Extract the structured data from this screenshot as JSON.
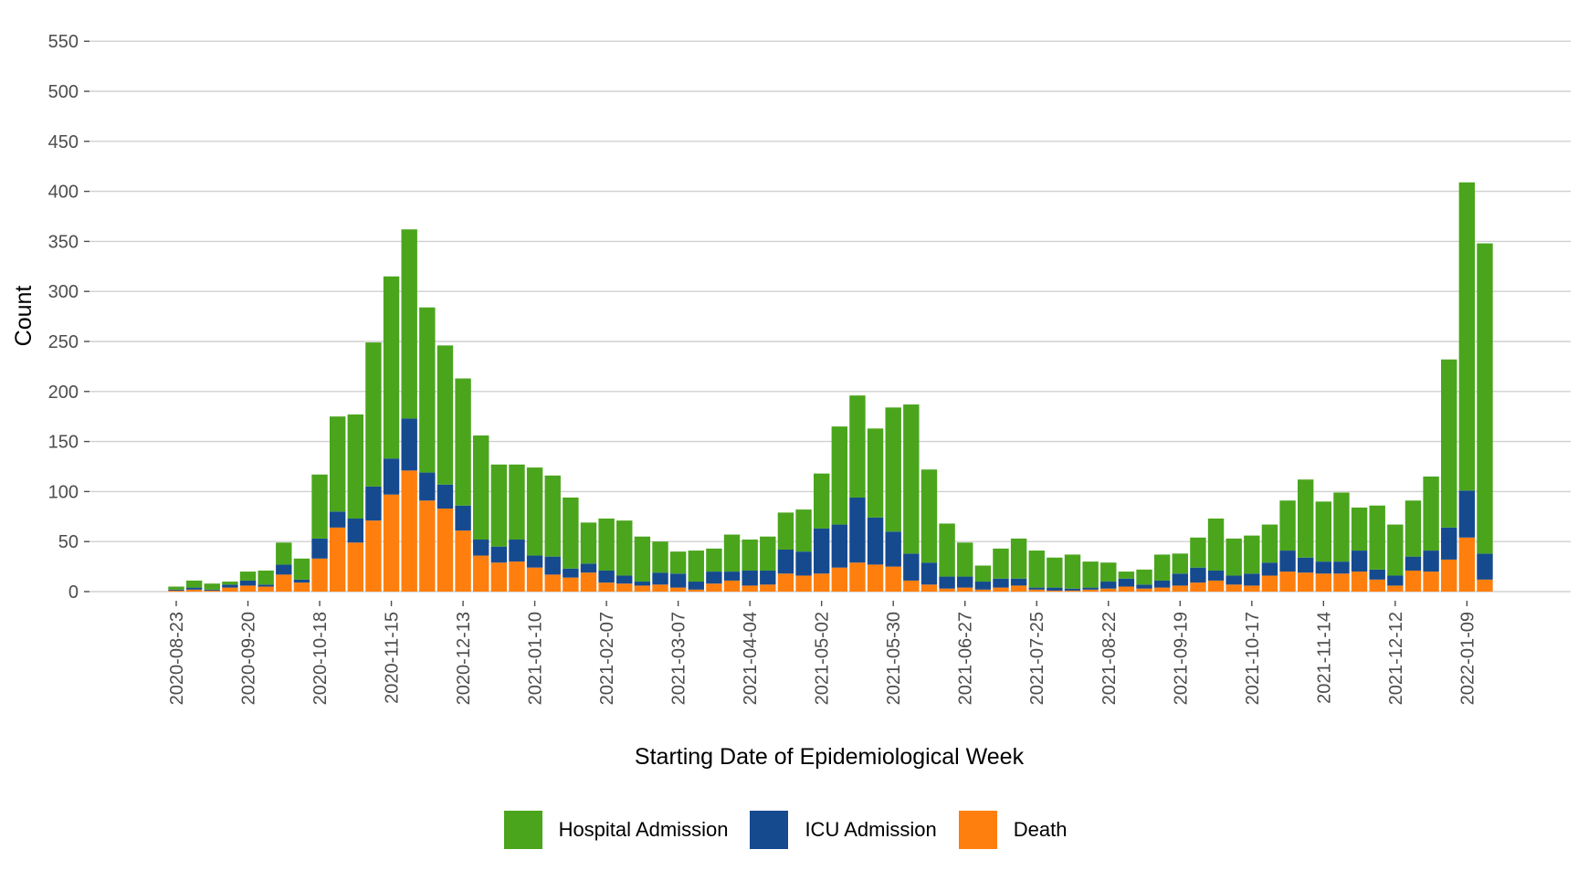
{
  "chart_data": {
    "type": "bar",
    "stacked": true,
    "xlabel": "Starting Date of Epidemiological Week",
    "ylabel": "Count",
    "ylim": [
      0,
      560
    ],
    "y_ticks": [
      0,
      50,
      100,
      150,
      200,
      250,
      300,
      350,
      400,
      450,
      500,
      550
    ],
    "grid": "horizontal",
    "legend_position": "bottom",
    "x_tick_labels": [
      "2020-08-23",
      "2020-09-20",
      "2020-10-18",
      "2020-11-15",
      "2020-12-13",
      "2021-01-10",
      "2021-02-07",
      "2021-03-07",
      "2021-04-04",
      "2021-05-02",
      "2021-05-30",
      "2021-06-27",
      "2021-07-25",
      "2021-08-22",
      "2021-09-19",
      "2021-10-17",
      "2021-11-14",
      "2021-12-12",
      "2022-01-09"
    ],
    "x_tick_every": 4,
    "series": [
      {
        "name": "Death",
        "color": "#FF7F0E",
        "values": [
          1,
          2,
          1,
          4,
          6,
          5,
          17,
          9,
          33,
          64,
          49,
          71,
          97,
          121,
          91,
          83,
          61,
          36,
          29,
          30,
          24,
          17,
          14,
          19,
          9,
          8,
          6,
          7,
          4,
          2,
          8,
          11,
          6,
          7,
          18,
          16,
          18,
          24,
          29,
          27,
          25,
          11,
          7,
          3,
          4,
          2,
          4,
          6,
          2,
          1,
          1,
          2,
          3,
          5,
          3,
          4,
          6,
          9,
          11,
          7,
          6,
          16,
          20,
          19,
          18,
          18,
          20,
          12,
          6,
          21,
          20,
          32,
          54,
          12
        ]
      },
      {
        "name": "ICU Admission",
        "color": "#164A8F",
        "values": [
          1,
          2,
          1,
          3,
          5,
          2,
          10,
          3,
          20,
          16,
          24,
          34,
          36,
          52,
          28,
          24,
          25,
          16,
          16,
          22,
          12,
          18,
          9,
          9,
          12,
          8,
          4,
          12,
          14,
          8,
          12,
          9,
          15,
          14,
          24,
          24,
          45,
          43,
          65,
          47,
          35,
          27,
          22,
          12,
          11,
          8,
          9,
          7,
          2,
          3,
          2,
          2,
          7,
          8,
          4,
          7,
          12,
          15,
          10,
          9,
          12,
          13,
          21,
          15,
          12,
          12,
          21,
          10,
          10,
          14,
          21,
          32,
          47,
          26
        ]
      },
      {
        "name": "Hospital Admission",
        "color": "#4AA51C",
        "values": [
          3,
          7,
          6,
          3,
          9,
          14,
          22,
          21,
          64,
          95,
          104,
          144,
          182,
          189,
          165,
          139,
          127,
          104,
          82,
          75,
          88,
          81,
          71,
          41,
          52,
          55,
          45,
          31,
          22,
          31,
          23,
          37,
          31,
          34,
          37,
          42,
          55,
          98,
          102,
          89,
          124,
          149,
          93,
          53,
          34,
          16,
          30,
          40,
          37,
          30,
          34,
          26,
          19,
          7,
          15,
          26,
          20,
          30,
          52,
          37,
          38,
          38,
          50,
          78,
          60,
          69,
          43,
          64,
          51,
          56,
          74,
          168,
          308,
          310
        ]
      }
    ]
  },
  "legend": {
    "items": [
      {
        "label": "Hospital Admission",
        "color": "#4AA51C"
      },
      {
        "label": "ICU Admission",
        "color": "#164A8F"
      },
      {
        "label": "Death",
        "color": "#FF7F0E"
      }
    ]
  }
}
